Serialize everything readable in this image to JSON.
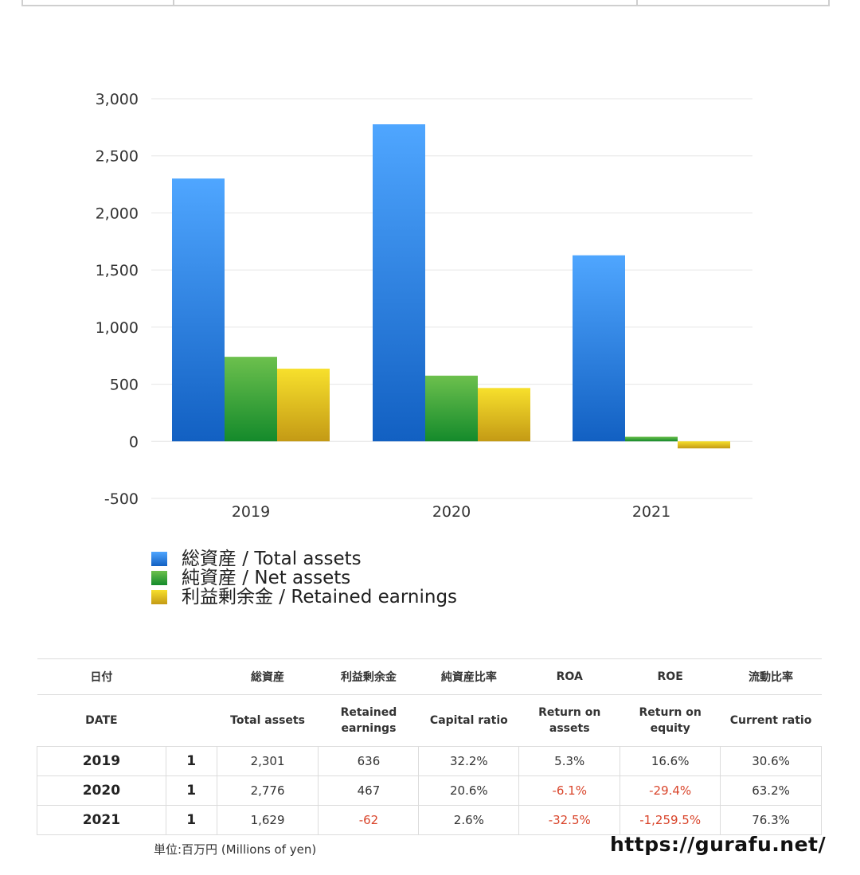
{
  "chart_data": {
    "type": "bar",
    "categories": [
      "2019",
      "2020",
      "2021"
    ],
    "series": [
      {
        "name": "総資産 / Total assets",
        "values": [
          2301,
          2776,
          1629
        ],
        "color": "#3b8ee8"
      },
      {
        "name": "純資産 / Net assets",
        "values": [
          740,
          575,
          40
        ],
        "color": "#2eab3a"
      },
      {
        "name": "利益剰余金 / Retained earnings",
        "values": [
          636,
          467,
          -62
        ],
        "color": "#e8c21f"
      }
    ],
    "ylim": [
      -500,
      3000
    ],
    "yticks": [
      "3,000",
      "2,500",
      "2,000",
      "1,500",
      "1,000",
      "500",
      "0",
      "-500"
    ],
    "ytick_values": [
      3000,
      2500,
      2000,
      1500,
      1000,
      500,
      0,
      -500
    ],
    "grid": true,
    "legend": "bottom-left"
  },
  "table": {
    "header_jp": [
      "日付",
      "",
      "総資産",
      "利益剰余金",
      "純資産比率",
      "ROA",
      "ROE",
      "流動比率"
    ],
    "header_en": [
      "DATE",
      "",
      "Total assets",
      "Retained earnings",
      "Capital ratio",
      "Return on assets",
      "Return on equity",
      "Current ratio"
    ],
    "rows": [
      {
        "year": "2019",
        "month": "1",
        "total_assets": "2,301",
        "retained_earnings": "636",
        "capital_ratio": "32.2%",
        "roa": "5.3%",
        "roe": "16.6%",
        "current_ratio": "30.6%"
      },
      {
        "year": "2020",
        "month": "1",
        "total_assets": "2,776",
        "retained_earnings": "467",
        "capital_ratio": "20.6%",
        "roa": "-6.1%",
        "roe": "-29.4%",
        "current_ratio": "63.2%"
      },
      {
        "year": "2021",
        "month": "1",
        "total_assets": "1,629",
        "retained_earnings": "-62",
        "capital_ratio": "2.6%",
        "roa": "-32.5%",
        "roe": "-1,259.5%",
        "current_ratio": "76.3%"
      }
    ]
  },
  "footer": {
    "unit": "単位:百万円 (Millions of yen)",
    "site": "https://gurafu.net/"
  },
  "colors": {
    "negative": "#d9452b"
  }
}
